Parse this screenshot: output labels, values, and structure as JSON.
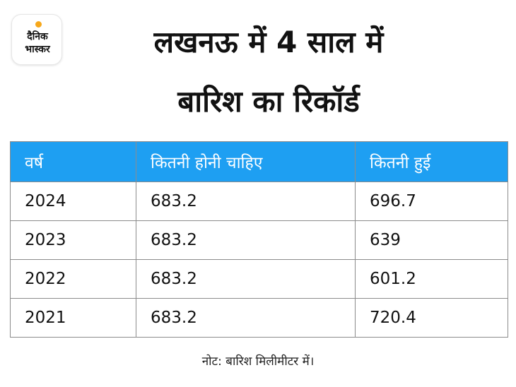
{
  "logo": {
    "line1": "दैनिक",
    "line2": "भास्कर"
  },
  "title": {
    "line1": "लखनऊ में 4 साल में",
    "line2": "बारिश का रिकॉर्ड"
  },
  "chart_data": {
    "type": "table",
    "columns": [
      "वर्ष",
      "कितनी होनी चाहिए",
      "कितनी हुई"
    ],
    "rows": [
      [
        "2024",
        "683.2",
        "696.7"
      ],
      [
        "2023",
        "683.2",
        "639"
      ],
      [
        "2022",
        "683.2",
        "601.2"
      ],
      [
        "2021",
        "683.2",
        "720.4"
      ]
    ]
  },
  "note": "नोट: बारिश मिलीमीटर में।",
  "colors": {
    "header_bg": "#1e9ff2",
    "logo_accent": "#f7a81b"
  }
}
